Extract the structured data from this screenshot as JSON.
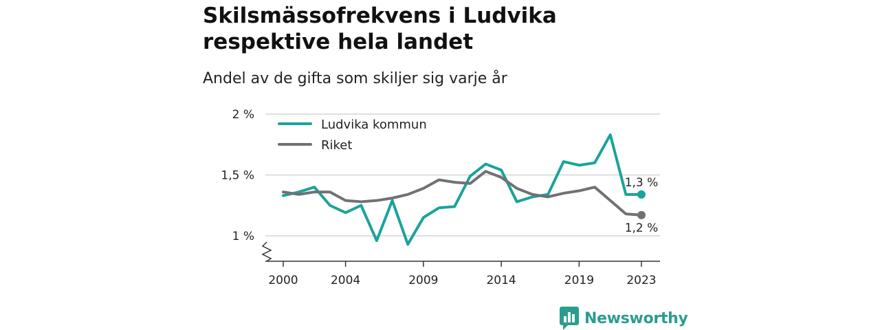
{
  "title_lines": [
    "Skilsmässofrekvens i Ludvika",
    "respektive hela landet"
  ],
  "subtitle": "Andel av de gifta som skiljer sig varje år",
  "brand": {
    "name": "Newsworthy",
    "icon": "bar-chart-speech-bubble-icon",
    "color": "#2a9d8f"
  },
  "chart_data": {
    "type": "line",
    "x": [
      2000,
      2001,
      2002,
      2003,
      2004,
      2005,
      2006,
      2007,
      2008,
      2009,
      2010,
      2011,
      2012,
      2013,
      2014,
      2015,
      2016,
      2017,
      2018,
      2019,
      2020,
      2021,
      2022,
      2023
    ],
    "x_ticks": [
      2000,
      2004,
      2009,
      2014,
      2019,
      2023
    ],
    "x_tick_labels": [
      "2000",
      "2004",
      "2009",
      "2014",
      "2019",
      "2023"
    ],
    "y_ticks": [
      1,
      1.5,
      2
    ],
    "y_tick_labels": [
      "1 %",
      "1,5 %",
      "2 %"
    ],
    "ylim": [
      0.8,
      2.0
    ],
    "y_axis_break": true,
    "grid": true,
    "legend_position": "top-left",
    "series": [
      {
        "name": "Ludvika kommun",
        "color": "#1aa39a",
        "values": [
          1.33,
          1.36,
          1.4,
          1.25,
          1.19,
          1.25,
          0.96,
          1.29,
          0.93,
          1.15,
          1.23,
          1.24,
          1.49,
          1.59,
          1.54,
          1.28,
          1.32,
          1.34,
          1.61,
          1.58,
          1.6,
          1.83,
          1.34,
          1.34
        ],
        "end_label": "1,3 %"
      },
      {
        "name": "Riket",
        "color": "#707075",
        "values": [
          1.36,
          1.34,
          1.36,
          1.36,
          1.29,
          1.28,
          1.29,
          1.31,
          1.34,
          1.39,
          1.46,
          1.44,
          1.43,
          1.53,
          1.48,
          1.39,
          1.34,
          1.32,
          1.35,
          1.37,
          1.4,
          1.29,
          1.18,
          1.17
        ],
        "end_label": "1,2 %"
      }
    ]
  }
}
